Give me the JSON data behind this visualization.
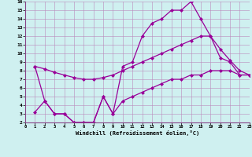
{
  "line1_x": [
    1,
    2,
    3,
    4,
    5,
    6,
    7,
    8,
    9,
    10,
    11,
    12,
    13,
    14,
    15,
    16,
    17,
    18,
    19,
    20,
    21,
    22,
    23
  ],
  "line1_y": [
    8.5,
    4.5,
    3.0,
    3.0,
    2.0,
    2.0,
    2.0,
    5.0,
    3.0,
    8.5,
    9.0,
    12.0,
    13.5,
    14.0,
    15.0,
    15.0,
    16.0,
    14.0,
    12.0,
    9.5,
    9.0,
    7.5,
    7.5
  ],
  "line2_x": [
    1,
    2,
    3,
    4,
    5,
    6,
    7,
    8,
    9,
    10,
    11,
    12,
    13,
    14,
    15,
    16,
    17,
    18,
    19,
    20,
    21,
    22,
    23
  ],
  "line2_y": [
    8.5,
    8.2,
    7.8,
    7.5,
    7.2,
    7.0,
    7.0,
    7.2,
    7.5,
    8.0,
    8.5,
    9.0,
    9.5,
    10.0,
    10.5,
    11.0,
    11.5,
    12.0,
    12.0,
    10.5,
    9.2,
    8.0,
    7.5
  ],
  "line3_x": [
    1,
    2,
    3,
    4,
    5,
    6,
    7,
    8,
    9,
    10,
    11,
    12,
    13,
    14,
    15,
    16,
    17,
    18,
    19,
    20,
    21,
    22,
    23
  ],
  "line3_y": [
    3.2,
    4.5,
    3.0,
    3.0,
    2.0,
    2.0,
    2.0,
    5.0,
    3.0,
    4.5,
    5.0,
    5.5,
    6.0,
    6.5,
    7.0,
    7.0,
    7.5,
    7.5,
    8.0,
    8.0,
    8.0,
    7.5,
    7.5
  ],
  "color": "#990099",
  "bg_color": "#cff0f0",
  "grid_color": "#bb88bb",
  "xlabel": "Windchill (Refroidissement éolien,°C)",
  "xlim": [
    0,
    23
  ],
  "ylim": [
    2,
    16
  ],
  "xticks": [
    0,
    1,
    2,
    3,
    4,
    5,
    6,
    7,
    8,
    9,
    10,
    11,
    12,
    13,
    14,
    15,
    16,
    17,
    18,
    19,
    20,
    21,
    22,
    23
  ],
  "yticks": [
    2,
    3,
    4,
    5,
    6,
    7,
    8,
    9,
    10,
    11,
    12,
    13,
    14,
    15,
    16
  ],
  "marker": "D",
  "markersize": 2.0,
  "linewidth": 0.9
}
